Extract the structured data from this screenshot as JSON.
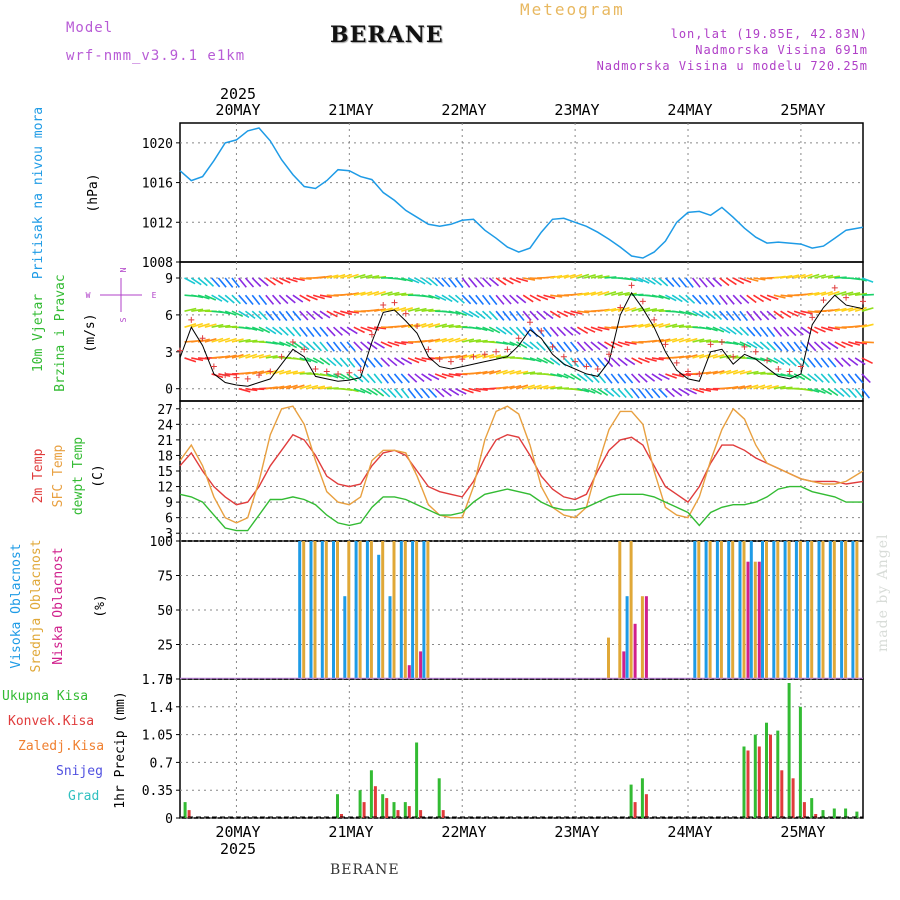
{
  "header": {
    "model_label": "Model",
    "model_name": "wrf-nmm_v3.9.1 e1km",
    "title": "BERANE",
    "product": "Meteogram",
    "coords": "lon,lat (19.85E, 42.83N)",
    "elevation": "Nadmorska Visina 691m",
    "model_elevation": "Nadmorska Visina u modelu 720.25m"
  },
  "footer": {
    "station": "BERANE"
  },
  "watermark": "made by Angel",
  "colors": {
    "pressure": "#1e9be6",
    "wind_label": "#33bb33",
    "wind_ylabel": "#b040c8",
    "temp2m": "#e03c3c",
    "sfc": "#e8a040",
    "dewpt": "#33bb33",
    "cloud_high": "#1e9be6",
    "cloud_mid": "#e0a838",
    "cloud_low": "#d0208c",
    "rain_total": "#33bb33",
    "rain_conv": "#e03c3c",
    "rain_frz": "#f08030",
    "snow": "#5050e0",
    "hail": "#30c0c0"
  },
  "time_axis": {
    "year": "2025",
    "days": [
      "20MAY",
      "21MAY",
      "22MAY",
      "23MAY",
      "24MAY",
      "25MAY"
    ],
    "start_day_offset": -0.5,
    "end_day_offset": 5.55
  },
  "panels": {
    "pressure": {
      "ylabel1": "Pritisak na nivou mora",
      "ylabel2": "(hPa)"
    },
    "wind": {
      "ylabel1": "10m Vjetar",
      "ylabel2": "Brzina i Pravac",
      "ylabel3": "(m/s)",
      "compass_n": "N",
      "compass_s": "S",
      "compass_w": "W",
      "compass_e": "E"
    },
    "temp": {
      "ylabel1": "2m Temp",
      "ylabel2": "SFC Temp",
      "ylabel3": "dewpt Temp",
      "ylabel4": "(C)"
    },
    "cloud": {
      "ylabel1": "Visoka Oblacnost",
      "ylabel2": "Srednja Oblacnost",
      "ylabel3": "Niska Oblacnost",
      "ylabel4": "(%)"
    },
    "precip": {
      "legend": [
        "Ukupna Kisa",
        "Konvek.Kisa",
        "Zaledj.Kisa",
        "Snijeg",
        "Grad"
      ],
      "ylabel": "1hr Precip (mm)"
    }
  },
  "chart_data": [
    {
      "type": "line",
      "name": "pressure",
      "ylim": [
        1008,
        1022
      ],
      "yticks": [
        1008,
        1012,
        1016,
        1020
      ],
      "x": [
        -0.5,
        -0.4,
        -0.3,
        -0.2,
        -0.1,
        0,
        0.1,
        0.2,
        0.3,
        0.4,
        0.5,
        0.6,
        0.7,
        0.8,
        0.9,
        1,
        1.1,
        1.2,
        1.3,
        1.4,
        1.5,
        1.6,
        1.7,
        1.8,
        1.9,
        2,
        2.1,
        2.2,
        2.3,
        2.4,
        2.5,
        2.6,
        2.7,
        2.8,
        2.9,
        3,
        3.1,
        3.2,
        3.3,
        3.4,
        3.5,
        3.6,
        3.7,
        3.8,
        3.9,
        4,
        4.1,
        4.2,
        4.3,
        4.4,
        4.5,
        4.6,
        4.7,
        4.8,
        4.9,
        5,
        5.1,
        5.2,
        5.3,
        5.4,
        5.55
      ],
      "series": [
        {
          "values": [
            1017.2,
            1016.2,
            1016.6,
            1018.2,
            1020,
            1020.3,
            1021.2,
            1021.5,
            1020.2,
            1018.3,
            1016.8,
            1015.6,
            1015.4,
            1016.2,
            1017.3,
            1017.2,
            1016.6,
            1016.3,
            1015,
            1014.2,
            1013.2,
            1012.5,
            1011.8,
            1011.6,
            1011.8,
            1012.2,
            1012.3,
            1011.2,
            1010.4,
            1009.5,
            1009,
            1009.4,
            1011,
            1012.3,
            1012.4,
            1012,
            1011.6,
            1011,
            1010.3,
            1009.5,
            1008.6,
            1008.4,
            1009,
            1010.1,
            1012,
            1013,
            1013.1,
            1012.7,
            1013.5,
            1012.5,
            1011.4,
            1010.5,
            1009.9,
            1010,
            1009.9,
            1009.8,
            1009.4,
            1009.6,
            1010.4,
            1011.2,
            1011.5
          ]
        }
      ]
    },
    {
      "type": "line",
      "name": "wind",
      "ylim": [
        -1,
        10.3
      ],
      "yticks": [
        0,
        3,
        6,
        9
      ],
      "x": [
        -0.5,
        -0.4,
        -0.3,
        -0.2,
        -0.1,
        0,
        0.1,
        0.2,
        0.3,
        0.4,
        0.5,
        0.6,
        0.7,
        0.8,
        0.9,
        1,
        1.1,
        1.2,
        1.3,
        1.4,
        1.5,
        1.6,
        1.7,
        1.8,
        1.9,
        2,
        2.1,
        2.2,
        2.3,
        2.4,
        2.5,
        2.6,
        2.7,
        2.8,
        2.9,
        3,
        3.1,
        3.2,
        3.3,
        3.4,
        3.5,
        3.6,
        3.7,
        3.8,
        3.9,
        4,
        4.1,
        4.2,
        4.3,
        4.4,
        4.5,
        4.6,
        4.7,
        4.8,
        4.9,
        5,
        5.1,
        5.2,
        5.3,
        5.4,
        5.55
      ],
      "series": [
        {
          "values": [
            2.5,
            5,
            3.5,
            1.2,
            0.5,
            0.3,
            0.2,
            0.5,
            0.8,
            2,
            3.2,
            2.6,
            1,
            0.8,
            0.6,
            0.7,
            0.9,
            3.8,
            6.2,
            6.4,
            5.5,
            4.5,
            2.6,
            1.8,
            1.6,
            1.8,
            2,
            2.2,
            2.4,
            2.6,
            3.5,
            4.8,
            4.1,
            2.8,
            2,
            1.6,
            1.2,
            1,
            2.2,
            6,
            7.8,
            6.5,
            5,
            3,
            1.5,
            0.8,
            0.6,
            3,
            3.2,
            2,
            2.8,
            2.4,
            1.7,
            1,
            0.8,
            1.2,
            5.2,
            6.6,
            7.6,
            6.8,
            6.5
          ]
        }
      ]
    },
    {
      "type": "line",
      "name": "temperature",
      "ylim": [
        1.5,
        28.5
      ],
      "yticks": [
        3,
        6,
        9,
        12,
        15,
        18,
        21,
        24,
        27
      ],
      "x": [
        -0.5,
        -0.4,
        -0.3,
        -0.2,
        -0.1,
        0,
        0.1,
        0.2,
        0.3,
        0.4,
        0.5,
        0.6,
        0.7,
        0.8,
        0.9,
        1,
        1.1,
        1.2,
        1.3,
        1.4,
        1.5,
        1.6,
        1.7,
        1.8,
        1.9,
        2,
        2.1,
        2.2,
        2.3,
        2.4,
        2.5,
        2.6,
        2.7,
        2.8,
        2.9,
        3,
        3.1,
        3.2,
        3.3,
        3.4,
        3.5,
        3.6,
        3.7,
        3.8,
        3.9,
        4,
        4.1,
        4.2,
        4.3,
        4.4,
        4.5,
        4.6,
        4.7,
        4.8,
        4.9,
        5,
        5.1,
        5.2,
        5.3,
        5.4,
        5.55
      ],
      "series": [
        {
          "values": [
            16,
            18.5,
            15,
            12,
            10,
            8.5,
            9,
            12,
            16,
            19,
            22,
            21,
            18,
            14,
            12.5,
            12,
            12.5,
            16,
            18.5,
            19,
            18,
            15,
            12,
            11,
            10.5,
            10,
            13,
            17.5,
            21,
            22,
            21.5,
            18,
            14,
            11.5,
            10,
            9.5,
            10.5,
            15,
            19,
            21,
            21.5,
            20,
            16,
            12,
            10.5,
            9,
            12,
            16.5,
            20,
            20,
            19,
            17.5,
            16.5,
            15.5,
            14.5,
            13.5,
            13,
            13,
            13,
            12.5,
            13
          ]
        },
        {
          "values": [
            17,
            20,
            16,
            10,
            6,
            5,
            6,
            13,
            22,
            27,
            27.5,
            24,
            17,
            11,
            9,
            8.5,
            10,
            17,
            19,
            19,
            18.5,
            14,
            8.5,
            6.5,
            6,
            6,
            12,
            21,
            26.5,
            27.5,
            26,
            20,
            12,
            8,
            6.5,
            6,
            8,
            16,
            23,
            26.5,
            26.5,
            24,
            15,
            8,
            6.5,
            6,
            10,
            17,
            23,
            27,
            25,
            20,
            16.5,
            15.5,
            14.5,
            13.5,
            13,
            12.5,
            12.5,
            13,
            15
          ]
        },
        {
          "values": [
            10.5,
            10,
            9,
            6.5,
            4,
            3.5,
            3.5,
            6.5,
            9.5,
            9.5,
            10,
            9.5,
            8.5,
            6.5,
            5,
            4.5,
            5,
            8,
            10,
            10,
            9.5,
            8.5,
            7.5,
            6.5,
            6.5,
            7,
            9,
            10.5,
            11,
            11.5,
            11,
            10.5,
            9,
            8,
            7.5,
            7.5,
            8,
            9,
            10,
            10.5,
            10.5,
            10.5,
            10,
            9,
            8,
            7,
            4.5,
            7,
            8,
            8.5,
            8.5,
            9,
            10,
            11.5,
            12,
            12,
            11,
            10.5,
            10,
            9,
            9
          ]
        }
      ]
    },
    {
      "type": "bar",
      "name": "cloud_cover",
      "ylim": [
        0,
        100
      ],
      "yticks": [
        0,
        25,
        50,
        75,
        100
      ],
      "x": [
        0.6,
        0.7,
        0.8,
        0.9,
        1.0,
        1.1,
        1.2,
        1.3,
        1.4,
        1.5,
        1.6,
        1.7,
        3.3,
        3.4,
        3.5,
        3.6,
        4.1,
        4.2,
        4.3,
        4.4,
        4.5,
        4.6,
        4.7,
        4.8,
        4.9,
        5.0,
        5.1,
        5.2,
        5.3,
        5.4,
        5.5
      ],
      "series": [
        {
          "name": "Visoka Oblacnost",
          "values": [
            100,
            100,
            100,
            100,
            60,
            100,
            100,
            90,
            60,
            100,
            100,
            100,
            0,
            0,
            60,
            0,
            100,
            100,
            100,
            100,
            100,
            100,
            100,
            100,
            100,
            100,
            100,
            100,
            100,
            100,
            100
          ]
        },
        {
          "name": "Srednja Oblacnost",
          "values": [
            100,
            100,
            100,
            100,
            100,
            100,
            100,
            100,
            100,
            100,
            100,
            100,
            30,
            100,
            100,
            60,
            100,
            100,
            100,
            100,
            100,
            85,
            100,
            100,
            100,
            100,
            100,
            100,
            100,
            100,
            100
          ]
        },
        {
          "name": "Niska Oblacnost",
          "values": [
            0,
            0,
            0,
            0,
            0,
            0,
            0,
            0,
            0,
            10,
            20,
            0,
            0,
            20,
            40,
            60,
            0,
            0,
            0,
            0,
            85,
            85,
            0,
            0,
            0,
            0,
            0,
            0,
            0,
            0,
            0
          ]
        }
      ]
    },
    {
      "type": "bar",
      "name": "precipitation",
      "ylim": [
        0,
        1.75
      ],
      "yticks": [
        0,
        0.35,
        0.7,
        1.05,
        1.4,
        1.75
      ],
      "x": [
        -0.45,
        0.9,
        1.1,
        1.2,
        1.3,
        1.4,
        1.5,
        1.6,
        1.8,
        3.5,
        3.6,
        4.5,
        4.6,
        4.7,
        4.8,
        4.9,
        5.0,
        5.1,
        5.2,
        5.3,
        5.4,
        5.5
      ],
      "series": [
        {
          "name": "Ukupna Kisa",
          "values": [
            0.2,
            0.3,
            0.35,
            0.6,
            0.3,
            0.2,
            0.2,
            0.95,
            0.5,
            0.42,
            0.5,
            0.9,
            1.05,
            1.2,
            1.1,
            1.7,
            1.4,
            0.25,
            0.1,
            0.12,
            0.12,
            0.08
          ]
        },
        {
          "name": "Konvek.Kisa",
          "values": [
            0.1,
            0.05,
            0.2,
            0.4,
            0.25,
            0.1,
            0.15,
            0.1,
            0.1,
            0.2,
            0.3,
            0.85,
            0.9,
            1.05,
            0.6,
            0.5,
            0.2,
            0.05,
            0,
            0,
            0,
            0
          ]
        }
      ]
    }
  ]
}
